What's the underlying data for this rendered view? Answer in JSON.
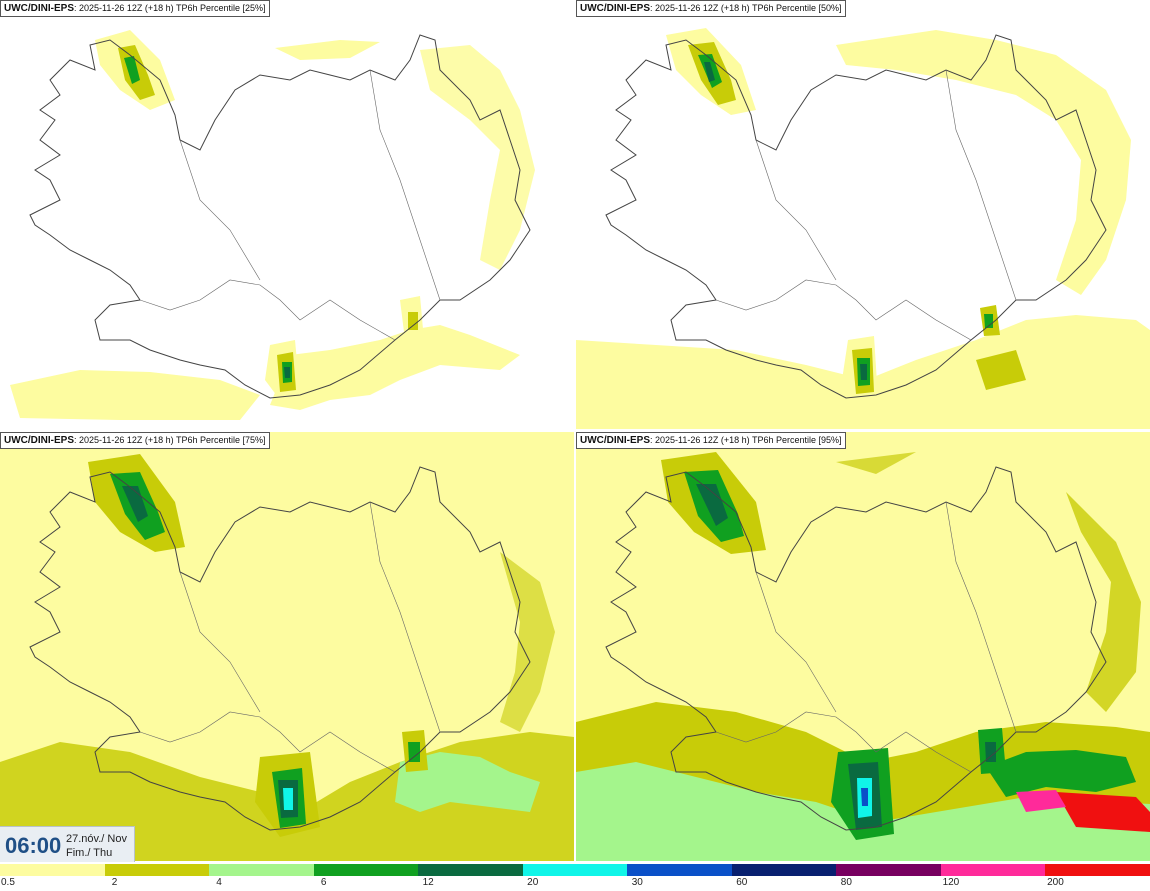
{
  "panels": [
    {
      "title_model": "UWC/DINI-EPS",
      "title_rest": ": 2025-11-26 12Z (+18 h) TP6h Percentile [25%]"
    },
    {
      "title_model": "UWC/DINI-EPS",
      "title_rest": ": 2025-11-26 12Z (+18 h) TP6h Percentile [50%]"
    },
    {
      "title_model": "UWC/DINI-EPS",
      "title_rest": ": 2025-11-26 12Z (+18 h) TP6h Percentile [75%]"
    },
    {
      "title_model": "UWC/DINI-EPS",
      "title_rest": ": 2025-11-26 12Z (+18 h) TP6h Percentile [95%]"
    }
  ],
  "valid_time": {
    "time": "06:00",
    "date_line1": "27.nóv./ Nov",
    "date_line2": "Fim./ Thu"
  },
  "colorbar": {
    "labels": [
      "0.5",
      "2",
      "4",
      "6",
      "12",
      "20",
      "30",
      "60",
      "80",
      "120",
      "200"
    ],
    "colors": [
      "#fdfca0",
      "#c8cc08",
      "#a4f58c",
      "#10a020",
      "#0a6a40",
      "#10f5e8",
      "#0a50c8",
      "#082070",
      "#780060",
      "#ff2a9a",
      "#f01010"
    ]
  },
  "colors": {
    "land_outline": "#444444",
    "road": "#666666"
  }
}
